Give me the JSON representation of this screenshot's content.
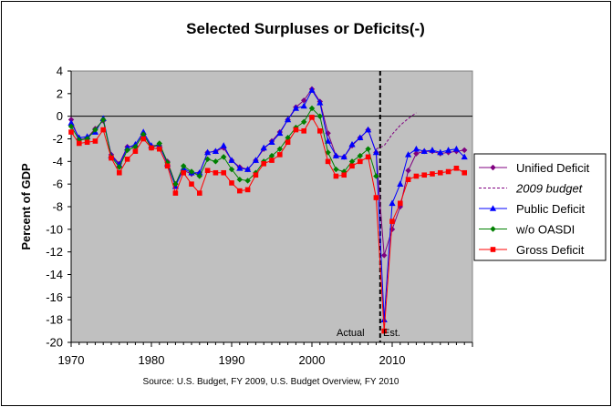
{
  "chart_data": {
    "type": "line",
    "title": "Selected Surpluses or Deficits(-)",
    "xlabel": "",
    "ylabel": "Percent of GDP",
    "source": "Source: U.S. Budget, FY 2009, U.S. Budget Overview, FY 2010",
    "xlim": [
      1970,
      2020
    ],
    "ylim": [
      -20,
      4
    ],
    "x_ticks": [
      1970,
      1980,
      1990,
      2000,
      2010
    ],
    "y_ticks": [
      4,
      2,
      0,
      -2,
      -4,
      -6,
      -8,
      -10,
      -12,
      -14,
      -16,
      -18,
      -20
    ],
    "grid": false,
    "plot_background": "#c0c0c0",
    "legend_position": "right",
    "annotations": {
      "actual": "Actual",
      "estimate": "Est.",
      "divider_x": 2008.5
    },
    "series": [
      {
        "name": "Unified Deficit",
        "color": "#800080",
        "marker": "diamond",
        "dash": "",
        "x": [
          1970,
          1971,
          1972,
          1973,
          1974,
          1975,
          1976,
          1977,
          1978,
          1979,
          1980,
          1981,
          1982,
          1983,
          1984,
          1985,
          1986,
          1987,
          1988,
          1989,
          1990,
          1991,
          1992,
          1993,
          1994,
          1995,
          1996,
          1997,
          1998,
          1999,
          2000,
          2001,
          2002,
          2003,
          2004,
          2005,
          2006,
          2007,
          2008,
          2009,
          2010,
          2011,
          2012,
          2013,
          2014,
          2015,
          2016,
          2017,
          2018,
          2019
        ],
        "y": [
          -0.3,
          -2.1,
          -1.9,
          -1.1,
          -0.4,
          -3.4,
          -4.2,
          -2.7,
          -2.7,
          -1.6,
          -2.7,
          -2.6,
          -4.0,
          -6.0,
          -4.8,
          -5.1,
          -5.0,
          -3.2,
          -3.1,
          -2.8,
          -3.9,
          -4.5,
          -4.7,
          -3.9,
          -2.9,
          -2.2,
          -1.4,
          -0.3,
          0.8,
          1.4,
          2.4,
          1.3,
          -1.5,
          -3.5,
          -3.6,
          -2.6,
          -1.9,
          -1.2,
          -3.2,
          -12.3,
          -10.0,
          -8.0,
          -4.8,
          -3.3,
          -3.1,
          -3.1,
          -3.3,
          -3.2,
          -3.1,
          -3.0
        ]
      },
      {
        "name": "2009 budget",
        "color": "#800080",
        "marker": "none",
        "dash": "3,2",
        "x": [
          2008,
          2009,
          2010,
          2011,
          2012,
          2013
        ],
        "y": [
          -2.9,
          -2.6,
          -1.6,
          -0.8,
          -0.2,
          0.3
        ]
      },
      {
        "name": "Public Deficit",
        "color": "#0000ff",
        "marker": "triangle",
        "dash": "",
        "x": [
          1970,
          1971,
          1972,
          1973,
          1974,
          1975,
          1976,
          1977,
          1978,
          1979,
          1980,
          1981,
          1982,
          1983,
          1984,
          1985,
          1986,
          1987,
          1988,
          1989,
          1990,
          1991,
          1992,
          1993,
          1994,
          1995,
          1996,
          1997,
          1998,
          1999,
          2000,
          2001,
          2002,
          2003,
          2004,
          2005,
          2006,
          2007,
          2008,
          2009,
          2010,
          2011,
          2012,
          2013,
          2014,
          2015,
          2016,
          2017,
          2018,
          2019
        ],
        "y": [
          -0.6,
          -1.9,
          -1.8,
          -1.4,
          -0.2,
          -3.5,
          -4.3,
          -2.8,
          -2.5,
          -1.4,
          -2.6,
          -2.6,
          -4.2,
          -6.2,
          -4.6,
          -5.0,
          -5.0,
          -3.2,
          -3.1,
          -2.6,
          -3.9,
          -4.6,
          -4.7,
          -3.9,
          -2.8,
          -2.3,
          -1.5,
          -0.3,
          0.7,
          0.9,
          2.3,
          1.2,
          -2.2,
          -3.5,
          -3.6,
          -2.5,
          -1.9,
          -1.2,
          -3.2,
          -18.0,
          -7.7,
          -6.0,
          -3.4,
          -2.9,
          -3.1,
          -3.0,
          -3.2,
          -3.0,
          -2.9,
          -3.6
        ]
      },
      {
        "name": "w/o OASDI",
        "color": "#008000",
        "marker": "diamond",
        "dash": "",
        "x": [
          1970,
          1971,
          1972,
          1973,
          1974,
          1975,
          1976,
          1977,
          1978,
          1979,
          1980,
          1981,
          1982,
          1983,
          1984,
          1985,
          1986,
          1987,
          1988,
          1989,
          1990,
          1991,
          1992,
          1993,
          1994,
          1995,
          1996,
          1997,
          1998,
          1999,
          2000,
          2001,
          2002,
          2003,
          2004,
          2005,
          2006,
          2007,
          2008
        ],
        "y": [
          -0.9,
          -2.1,
          -2.0,
          -1.2,
          -0.3,
          -3.6,
          -4.5,
          -3.0,
          -2.7,
          -1.6,
          -2.8,
          -2.4,
          -4.1,
          -6.0,
          -4.4,
          -4.9,
          -5.3,
          -3.8,
          -4.0,
          -3.6,
          -4.7,
          -5.6,
          -5.7,
          -5.0,
          -4.0,
          -3.5,
          -2.9,
          -1.9,
          -1.0,
          -0.5,
          0.7,
          0.0,
          -3.2,
          -4.7,
          -4.9,
          -4.0,
          -3.5,
          -2.9,
          -5.3
        ]
      },
      {
        "name": "Gross Deficit",
        "color": "#ff0000",
        "marker": "square",
        "dash": "",
        "x": [
          1970,
          1971,
          1972,
          1973,
          1974,
          1975,
          1976,
          1977,
          1978,
          1979,
          1980,
          1981,
          1982,
          1983,
          1984,
          1985,
          1986,
          1987,
          1988,
          1989,
          1990,
          1991,
          1992,
          1993,
          1994,
          1995,
          1996,
          1997,
          1998,
          1999,
          2000,
          2001,
          2002,
          2003,
          2004,
          2005,
          2006,
          2007,
          2008,
          2009,
          2010,
          2011,
          2012,
          2013,
          2014,
          2015,
          2016,
          2017,
          2018,
          2019
        ],
        "y": [
          -1.4,
          -2.4,
          -2.3,
          -2.2,
          -1.2,
          -3.7,
          -5.0,
          -3.8,
          -3.1,
          -2.0,
          -2.8,
          -2.9,
          -4.4,
          -6.8,
          -5.0,
          -6.0,
          -6.8,
          -4.8,
          -5.0,
          -5.0,
          -5.9,
          -6.6,
          -6.5,
          -5.2,
          -4.2,
          -3.9,
          -3.4,
          -2.3,
          -1.2,
          -1.3,
          -0.1,
          -1.3,
          -4.0,
          -5.3,
          -5.2,
          -4.4,
          -4.0,
          -3.6,
          -7.2,
          -19.0,
          -9.3,
          -7.7,
          -5.6,
          -5.3,
          -5.2,
          -5.1,
          -5.0,
          -4.9,
          -4.6,
          -5.0
        ]
      }
    ]
  }
}
